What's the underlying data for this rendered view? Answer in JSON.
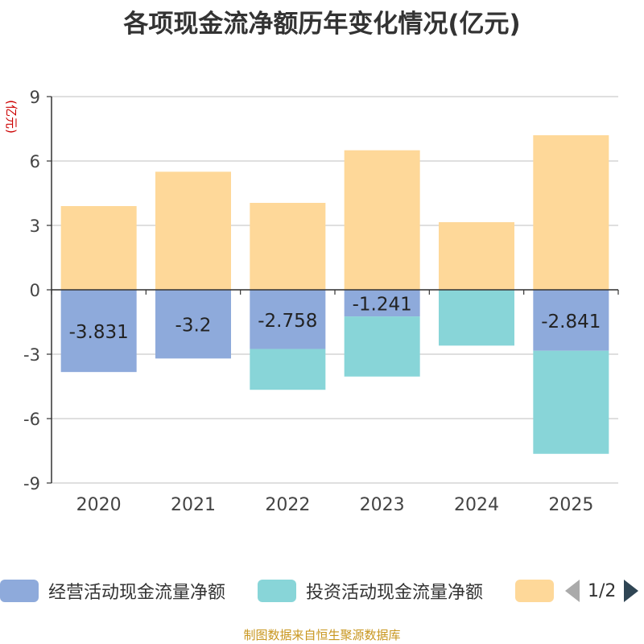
{
  "title": "各项现金流净额历年变化情况(亿元)",
  "source": "制图数据来自恒生聚源数据库",
  "legend": {
    "items": [
      {
        "label": "经营活动现金流量净额",
        "color": "#8eaadb"
      },
      {
        "label": "投资活动现金流量净额",
        "color": "#88d5d8"
      },
      {
        "label": "",
        "color": "#fed899"
      }
    ],
    "page": "1/2"
  },
  "chart_data": {
    "type": "bar",
    "stacked": true,
    "ylabel": "(亿元)",
    "ylim": [
      -9,
      9
    ],
    "yticks": [
      -9,
      -6,
      -3,
      0,
      3,
      6,
      9
    ],
    "categories": [
      "2020",
      "2021",
      "2022",
      "2023",
      "2024",
      "2025"
    ],
    "series": [
      {
        "name": "经营活动现金流量净额",
        "color": "#8eaadb",
        "values": [
          -3.831,
          -3.2,
          -2.758,
          -1.241,
          0.0,
          -2.841
        ],
        "labels": [
          "-3.831",
          "-3.2",
          "-2.758",
          "-1.241",
          "",
          "-2.841"
        ]
      },
      {
        "name": "投资活动现金流量净额",
        "color": "#88d5d8",
        "values": [
          0.0,
          0.0,
          -1.9,
          -2.8,
          -2.6,
          -4.8
        ]
      },
      {
        "name": "",
        "color": "#fed899",
        "values": [
          3.9,
          5.5,
          4.05,
          6.5,
          3.15,
          7.2
        ]
      }
    ],
    "grid": true
  }
}
